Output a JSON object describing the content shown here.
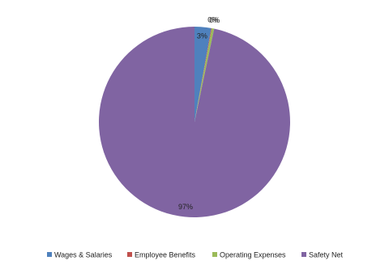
{
  "chart_data": {
    "type": "pie",
    "categories": [
      "Wages & Salaries",
      "Employee Benefits",
      "Operating Expenses",
      "Safety Net"
    ],
    "values": [
      2.8,
      0.1,
      0.4,
      96.7
    ],
    "value_labels": [
      "3%",
      "0%",
      "0%",
      "97%"
    ],
    "colors": [
      "#4f81bd",
      "#c0504d",
      "#9bbb59",
      "#8064a2"
    ],
    "legend": "bottom"
  }
}
